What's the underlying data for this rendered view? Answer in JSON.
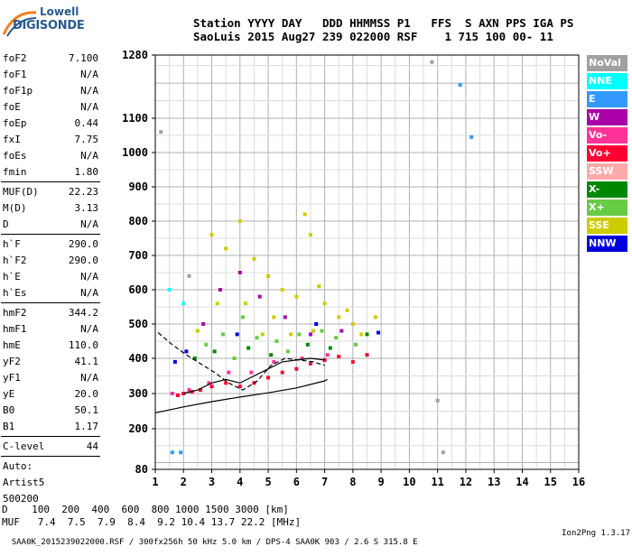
{
  "logo": {
    "line1": "Lowell",
    "line2": "DIGISONDE"
  },
  "header": {
    "line1": "Station YYYY DAY   DDD HHMMSS P1   FFS  S AXN PPS IGA PS",
    "line2": "SaoLuis 2015 Aug27 239 022000 RSF    1 715 100 00- 11"
  },
  "params": {
    "g1": [
      {
        "k": "foF2",
        "v": "7.100"
      },
      {
        "k": "foF1",
        "v": "N/A"
      },
      {
        "k": "foF1p",
        "v": "N/A"
      },
      {
        "k": "foE",
        "v": "N/A"
      },
      {
        "k": "foEp",
        "v": "0.44"
      },
      {
        "k": "fxI",
        "v": "7.75"
      },
      {
        "k": "foEs",
        "v": "N/A"
      },
      {
        "k": "fmin",
        "v": "1.80"
      }
    ],
    "g2": [
      {
        "k": "MUF(D)",
        "v": "22.23"
      },
      {
        "k": "M(D)",
        "v": "3.13"
      },
      {
        "k": "D",
        "v": "N/A"
      }
    ],
    "g3": [
      {
        "k": "h`F",
        "v": "290.0"
      },
      {
        "k": "h`F2",
        "v": "290.0"
      },
      {
        "k": "h`E",
        "v": "N/A"
      },
      {
        "k": "h`Es",
        "v": "N/A"
      }
    ],
    "g4": [
      {
        "k": "hmF2",
        "v": "344.2"
      },
      {
        "k": "hmF1",
        "v": "N/A"
      },
      {
        "k": "hmE",
        "v": "110.0"
      },
      {
        "k": "yF2",
        "v": "41.1"
      },
      {
        "k": "yF1",
        "v": "N/A"
      },
      {
        "k": "yE",
        "v": "20.0"
      },
      {
        "k": "B0",
        "v": "50.1"
      },
      {
        "k": "B1",
        "v": "1.17"
      }
    ],
    "clevel": {
      "k": "C-level",
      "v": "44"
    },
    "auto": [
      "Auto:",
      "Artist5",
      "500200"
    ]
  },
  "legend": [
    {
      "label": "NoVal",
      "color": "#a0a0a0"
    },
    {
      "label": "NNE",
      "color": "#00ffff"
    },
    {
      "label": "E",
      "color": "#3399ff"
    },
    {
      "label": "W",
      "color": "#aa00aa"
    },
    {
      "label": "Vo-",
      "color": "#ff3399"
    },
    {
      "label": "Vo+",
      "color": "#ff0033"
    },
    {
      "label": "SSW",
      "color": "#ffaaaa"
    },
    {
      "label": "X-",
      "color": "#008800"
    },
    {
      "label": "X+",
      "color": "#66cc44"
    },
    {
      "label": "SSE",
      "color": "#cccc00"
    },
    {
      "label": "NNW",
      "color": "#0000dd"
    }
  ],
  "dtable": {
    "line1": "D    100  200  400  600  800 1000 1500 3000 [km]",
    "line2": "MUF   7.4  7.5  7.9  8.4  9.2 10.4 13.7 22.2 [MHz]"
  },
  "footer": {
    "left": "SAA0K_2015239022000.RSF / 300fx256h 50 kHz 5.0 km / DPS-4 SAA0K 903 / 2.6 S 315.8 E",
    "right": "Ion2Png 1.3.17"
  },
  "chart_data": {
    "type": "scatter",
    "title": "",
    "xlabel": "",
    "ylabel": "",
    "x_ticks": [
      1,
      2,
      3,
      4,
      5,
      6,
      7,
      8,
      9,
      10,
      11,
      12,
      13,
      14,
      15,
      16
    ],
    "y_ticks": [
      80,
      200,
      300,
      400,
      500,
      600,
      700,
      800,
      900,
      1000,
      1100,
      1280
    ],
    "xlim": [
      1,
      16
    ],
    "ylim": [
      80,
      1280
    ],
    "grid": true,
    "legend_position": "right",
    "series": [
      {
        "name": "SSE",
        "color": "#cccc00",
        "points": [
          [
            3.0,
            760
          ],
          [
            3.5,
            720
          ],
          [
            4.0,
            800
          ],
          [
            4.5,
            690
          ],
          [
            5.0,
            640
          ],
          [
            5.5,
            600
          ],
          [
            6.0,
            580
          ],
          [
            6.3,
            820
          ],
          [
            6.5,
            760
          ],
          [
            7.0,
            560
          ],
          [
            7.5,
            520
          ],
          [
            8.0,
            500
          ],
          [
            8.3,
            470
          ],
          [
            8.8,
            520
          ],
          [
            4.2,
            560
          ],
          [
            5.2,
            520
          ],
          [
            5.8,
            470
          ],
          [
            6.8,
            610
          ],
          [
            7.8,
            540
          ],
          [
            2.5,
            480
          ],
          [
            3.2,
            560
          ],
          [
            4.8,
            470
          ],
          [
            6.6,
            480
          ]
        ]
      },
      {
        "name": "X+",
        "color": "#66cc44",
        "points": [
          [
            2.8,
            440
          ],
          [
            3.4,
            470
          ],
          [
            4.1,
            520
          ],
          [
            4.6,
            460
          ],
          [
            5.3,
            450
          ],
          [
            6.1,
            470
          ],
          [
            6.9,
            480
          ],
          [
            7.4,
            460
          ],
          [
            8.1,
            440
          ],
          [
            3.8,
            400
          ],
          [
            5.7,
            420
          ]
        ]
      },
      {
        "name": "X-",
        "color": "#008800",
        "points": [
          [
            3.1,
            420
          ],
          [
            4.3,
            430
          ],
          [
            5.1,
            410
          ],
          [
            6.4,
            440
          ],
          [
            7.2,
            430
          ],
          [
            2.4,
            400
          ],
          [
            8.5,
            470
          ]
        ]
      },
      {
        "name": "Vo+",
        "color": "#ff0033",
        "points": [
          [
            1.8,
            295
          ],
          [
            2.0,
            300
          ],
          [
            2.3,
            305
          ],
          [
            2.6,
            310
          ],
          [
            3.0,
            320
          ],
          [
            3.5,
            330
          ],
          [
            4.0,
            320
          ],
          [
            4.5,
            330
          ],
          [
            5.0,
            345
          ],
          [
            5.5,
            360
          ],
          [
            6.0,
            370
          ],
          [
            6.5,
            385
          ],
          [
            7.0,
            395
          ],
          [
            7.5,
            405
          ],
          [
            8.0,
            390
          ],
          [
            8.5,
            410
          ]
        ]
      },
      {
        "name": "Vo-",
        "color": "#ff3399",
        "points": [
          [
            1.6,
            300
          ],
          [
            2.2,
            310
          ],
          [
            2.9,
            330
          ],
          [
            3.6,
            360
          ],
          [
            4.4,
            360
          ],
          [
            5.2,
            390
          ],
          [
            6.2,
            400
          ],
          [
            7.1,
            410
          ]
        ]
      },
      {
        "name": "W",
        "color": "#aa00aa",
        "points": [
          [
            2.7,
            500
          ],
          [
            3.3,
            600
          ],
          [
            4.0,
            650
          ],
          [
            4.7,
            580
          ],
          [
            5.6,
            520
          ],
          [
            6.5,
            470
          ],
          [
            7.6,
            480
          ]
        ]
      },
      {
        "name": "NNW",
        "color": "#0000dd",
        "points": [
          [
            1.7,
            390
          ],
          [
            2.1,
            420
          ],
          [
            3.9,
            470
          ],
          [
            6.7,
            500
          ],
          [
            8.9,
            475
          ]
        ]
      },
      {
        "name": "E",
        "color": "#3399ff",
        "points": [
          [
            11.8,
            1195
          ],
          [
            12.2,
            1045
          ],
          [
            1.9,
            130
          ],
          [
            1.6,
            130
          ]
        ]
      },
      {
        "name": "NNE",
        "color": "#00ffff",
        "points": [
          [
            1.5,
            600
          ],
          [
            2.0,
            560
          ]
        ]
      },
      {
        "name": "NoVal",
        "color": "#a0a0a0",
        "points": [
          [
            10.8,
            1260
          ],
          [
            11.0,
            280
          ],
          [
            11.2,
            130
          ],
          [
            2.2,
            640
          ],
          [
            1.2,
            1060
          ]
        ]
      }
    ],
    "trace_lower": [
      [
        1,
        245
      ],
      [
        2,
        262
      ],
      [
        3,
        277
      ],
      [
        4,
        290
      ],
      [
        5,
        302
      ],
      [
        6,
        316
      ],
      [
        7,
        336
      ],
      [
        7.1,
        340
      ]
    ],
    "trace_upper": [
      [
        1.1,
        475
      ],
      [
        1.6,
        440
      ],
      [
        2.1,
        410
      ],
      [
        2.6,
        385
      ],
      [
        3.1,
        360
      ],
      [
        3.6,
        330
      ],
      [
        4.1,
        310
      ],
      [
        4.6,
        335
      ],
      [
        5.1,
        380
      ],
      [
        5.6,
        400
      ],
      [
        6.1,
        395
      ],
      [
        6.6,
        390
      ],
      [
        7.0,
        380
      ]
    ],
    "trace_mid": [
      [
        2.0,
        300
      ],
      [
        2.5,
        310
      ],
      [
        3.0,
        330
      ],
      [
        3.5,
        340
      ],
      [
        4.0,
        330
      ],
      [
        4.5,
        350
      ],
      [
        5.0,
        370
      ],
      [
        5.5,
        390
      ],
      [
        6.0,
        395
      ],
      [
        6.5,
        400
      ],
      [
        7.0,
        395
      ]
    ]
  }
}
